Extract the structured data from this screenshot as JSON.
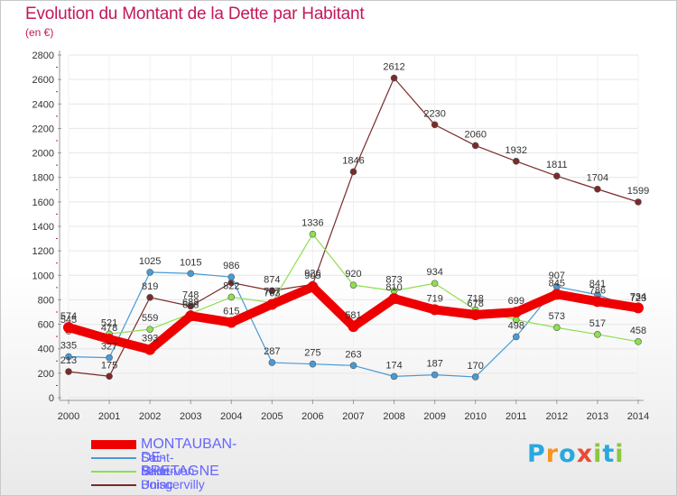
{
  "title": "Evolution du Montant de la Dette par Habitant",
  "unit": "(en €)",
  "logo": {
    "letters": [
      "P",
      "r",
      "o",
      "x",
      "i",
      "t",
      "i"
    ],
    "colors": [
      "#29a8e0",
      "#f7941d",
      "#29a8e0",
      "#e94b35",
      "#8dc63f",
      "#29a8e0",
      "#8dc63f"
    ]
  },
  "chart_data": {
    "type": "line",
    "title": "Evolution du Montant de la Dette par Habitant",
    "ylabel": "(en €)",
    "xlabel": "",
    "ylim": [
      0,
      2800
    ],
    "yticks": [
      0,
      200,
      400,
      600,
      800,
      1000,
      1200,
      1400,
      1600,
      1800,
      2000,
      2200,
      2400,
      2600,
      2800
    ],
    "x": [
      "2000",
      "2001",
      "2002",
      "2003",
      "2004",
      "2005",
      "2006",
      "2007",
      "2008",
      "2009",
      "2010",
      "2011",
      "2012",
      "2013",
      "2014"
    ],
    "grid": true,
    "legend_position": "bottom-left",
    "series": [
      {
        "name": "Boisgervilly",
        "color": "#7b2a2a",
        "values": [
          213,
          175,
          819,
          748,
          940,
          874,
          926,
          1846,
          2612,
          2230,
          2060,
          1932,
          1811,
          1704,
          1599
        ],
        "labels": [
          "213",
          "175",
          "819",
          "748",
          "",
          "874",
          "926",
          "1846",
          "2612",
          "2230",
          "2060",
          "1932",
          "1811",
          "1704",
          "1599"
        ]
      },
      {
        "name": "Saint-M'Hervon",
        "color": "#4a9ad4",
        "values": [
          335,
          327,
          1025,
          1015,
          986,
          287,
          275,
          263,
          174,
          187,
          170,
          498,
          907,
          841,
          723
        ],
        "labels": [
          "335",
          "327",
          "1025",
          "1015",
          "986",
          "287",
          "275",
          "263",
          "174",
          "187",
          "170",
          "498",
          "907",
          "841",
          "723"
        ]
      },
      {
        "name": "Saint-Uniac",
        "color": "#8de04e",
        "values": [
          545,
          521,
          559,
          688,
          822,
          777,
          1336,
          920,
          873,
          934,
          718,
          636,
          573,
          517,
          458
        ],
        "labels": [
          "545",
          "521",
          "559",
          "688",
          "822",
          "777",
          "1336",
          "920",
          "873",
          "934",
          "718",
          "",
          "573",
          "517",
          "458"
        ]
      },
      {
        "name": "MONTAUBAN-DE-BRETAGNE",
        "color": "#ee0000",
        "values": [
          574,
          478,
          393,
          668,
          615,
          763,
          905,
          581,
          810,
          719,
          678,
          699,
          845,
          786,
          734
        ],
        "labels": [
          "574",
          "478",
          "393",
          "668",
          "615",
          "763",
          "905",
          "581",
          "810",
          "719",
          "678",
          "699",
          "845",
          "786",
          "734"
        ]
      }
    ]
  }
}
